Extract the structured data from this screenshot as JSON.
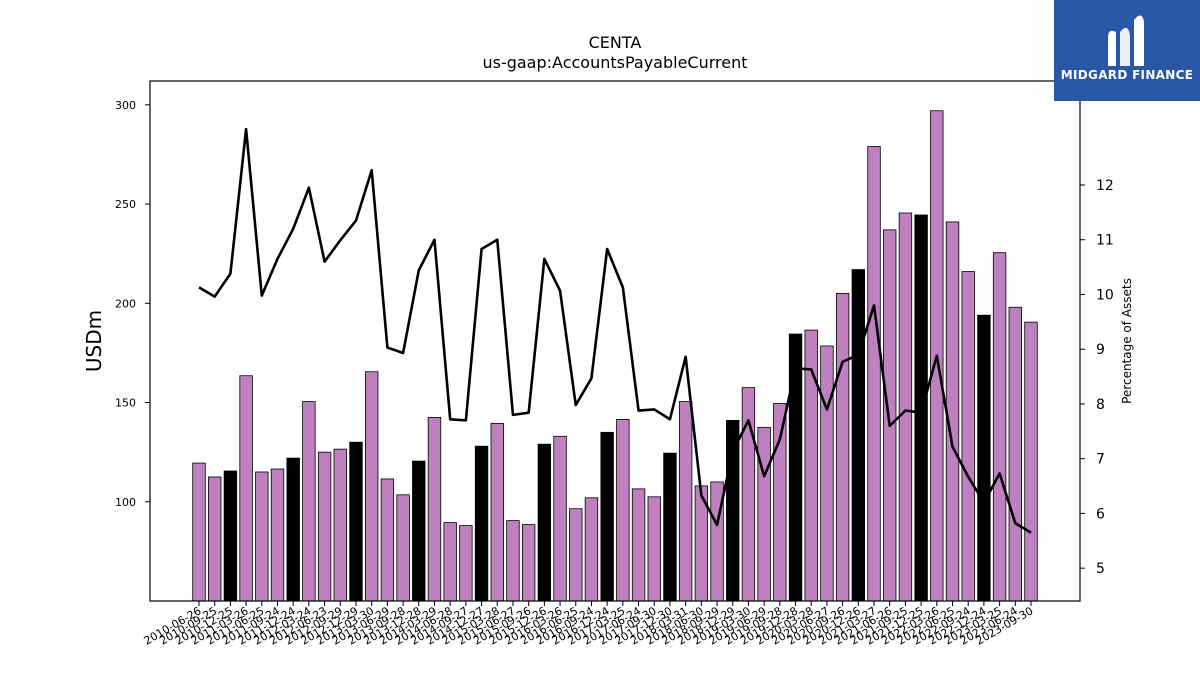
{
  "logo": {
    "text": "MIDGARD FINANCE",
    "icon": "midgard-m-icon",
    "background": "#2a56a8"
  },
  "chart_data": {
    "type": "bar",
    "title": "CENTA",
    "subtitle": "us-gaap:AccountsPayableCurrent",
    "ylabel": "USDm",
    "y2label": "Percentage of Assets",
    "ylim": [
      50,
      312
    ],
    "y2lim": [
      4.4,
      13.9
    ],
    "yticks": [
      100,
      150,
      200,
      250,
      300
    ],
    "y2ticks": [
      5,
      6,
      7,
      8,
      9,
      10,
      11,
      12
    ],
    "bar_colors": {
      "default": "#bf80bf",
      "highlight": "#000000"
    },
    "line_color": "#000000",
    "grid": false,
    "legend": "none",
    "categories": [
      "2010-06-26",
      "2010-09-25",
      "2010-12-25",
      "2011-03-26",
      "2011-06-25",
      "2011-09-24",
      "2011-12-24",
      "2012-03-24",
      "2012-06-23",
      "2012-09-29",
      "2012-12-29",
      "2013-03-30",
      "2013-06-29",
      "2013-09-28",
      "2013-12-28",
      "2014-03-29",
      "2014-06-28",
      "2014-09-27",
      "2014-12-27",
      "2015-03-28",
      "2015-06-27",
      "2015-09-26",
      "2015-12-26",
      "2016-03-26",
      "2016-06-25",
      "2016-09-24",
      "2016-12-24",
      "2017-03-25",
      "2017-06-24",
      "2017-09-30",
      "2017-12-30",
      "2018-03-31",
      "2018-06-30",
      "2018-09-29",
      "2018-12-29",
      "2019-03-30",
      "2019-06-29",
      "2019-09-28",
      "2019-12-28",
      "2020-03-28",
      "2020-06-27",
      "2020-09-26",
      "2020-12-26",
      "2021-03-27",
      "2021-06-26",
      "2021-09-25",
      "2021-12-25",
      "2022-03-26",
      "2022-06-25",
      "2022-09-24",
      "2022-12-24",
      "2023-03-25",
      "2023-06-24",
      "2023-09-30"
    ],
    "values": [
      119.5,
      112.5,
      115.5,
      163.5,
      115,
      116.5,
      122,
      150.5,
      125,
      126.5,
      130,
      165.5,
      111.5,
      103.5,
      120.5,
      142.5,
      89.5,
      88,
      128,
      139.5,
      90.5,
      88.5,
      129,
      133,
      96.5,
      102,
      135,
      141.5,
      106.5,
      102.5,
      124.5,
      150.5,
      108,
      110,
      141,
      157.5,
      137.5,
      149.5,
      184.5,
      186.5,
      178.5,
      205,
      217,
      279,
      237,
      245.5,
      244.5,
      297,
      241,
      216,
      194,
      225.5,
      198,
      190.5
    ],
    "highlight": [
      false,
      false,
      true,
      false,
      false,
      false,
      true,
      false,
      false,
      false,
      true,
      false,
      false,
      false,
      true,
      false,
      false,
      false,
      true,
      false,
      false,
      false,
      true,
      false,
      false,
      false,
      true,
      false,
      false,
      false,
      true,
      false,
      false,
      false,
      true,
      false,
      false,
      false,
      true,
      false,
      false,
      false,
      true,
      false,
      false,
      false,
      true,
      false,
      false,
      false,
      true,
      false,
      false,
      false
    ],
    "percent_of_assets": [
      10.13,
      9.96,
      10.38,
      13.02,
      9.98,
      10.65,
      11.2,
      11.95,
      10.6,
      10.99,
      11.35,
      12.27,
      9.03,
      8.93,
      10.44,
      11,
      7.72,
      7.7,
      10.83,
      11,
      7.8,
      7.84,
      10.65,
      10.07,
      7.98,
      8.47,
      10.83,
      10.13,
      7.88,
      7.9,
      7.72,
      8.86,
      6.33,
      5.79,
      7.13,
      7.7,
      6.68,
      7.35,
      8.65,
      8.63,
      7.9,
      8.77,
      8.9,
      9.8,
      7.6,
      7.88,
      7.84,
      8.88,
      7.22,
      6.67,
      6.2,
      6.73,
      5.82,
      5.65
    ]
  }
}
